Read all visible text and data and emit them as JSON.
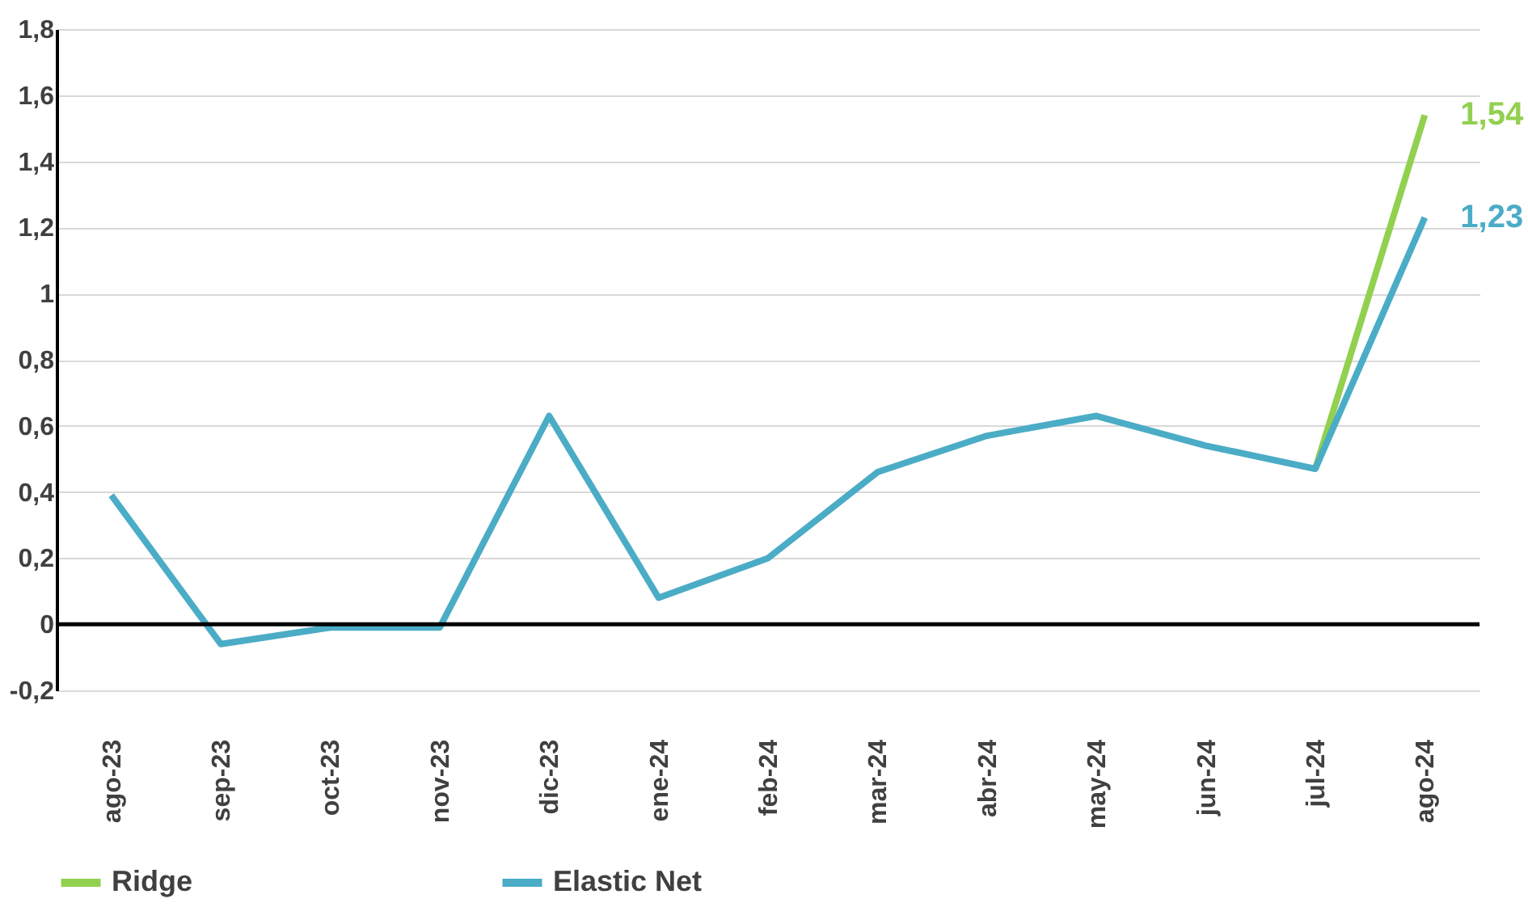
{
  "chart_data": {
    "type": "line",
    "categories": [
      "ago-23",
      "sep-23",
      "oct-23",
      "nov-23",
      "dic-23",
      "ene-24",
      "feb-24",
      "mar-24",
      "abr-24",
      "may-24",
      "jun-24",
      "jul-24",
      "ago-24"
    ],
    "series": [
      {
        "name": "Ridge",
        "color": "#92d050",
        "values": [
          null,
          null,
          null,
          null,
          null,
          null,
          null,
          null,
          null,
          null,
          null,
          0.47,
          1.54
        ],
        "value_labels": [
          null,
          null,
          null,
          null,
          null,
          null,
          null,
          null,
          null,
          null,
          null,
          null,
          "1,54"
        ]
      },
      {
        "name": "Elastic Net",
        "color": "#4bacc6",
        "values": [
          0.39,
          -0.06,
          -0.01,
          -0.01,
          0.63,
          0.08,
          0.2,
          0.46,
          0.57,
          0.63,
          0.54,
          0.47,
          1.23
        ],
        "value_labels": [
          null,
          null,
          null,
          null,
          null,
          null,
          null,
          null,
          null,
          null,
          null,
          null,
          "1,23"
        ]
      }
    ],
    "ylim": [
      -0.2,
      1.8
    ],
    "yticks": [
      {
        "value": -0.2,
        "label": "-0,2"
      },
      0,
      {
        "value": 0.2,
        "label": "0,2"
      },
      {
        "value": 0.4,
        "label": "0,4"
      },
      {
        "value": 0.6,
        "label": "0,6"
      },
      {
        "value": 0.8,
        "label": "0,8"
      },
      1,
      {
        "value": 1.2,
        "label": "1,2"
      },
      {
        "value": 1.4,
        "label": "1,4"
      },
      {
        "value": 1.6,
        "label": "1,6"
      },
      {
        "value": 1.8,
        "label": "1,8"
      }
    ],
    "ref_lines": [
      {
        "axis": "y",
        "value": 0,
        "color": "#000000"
      }
    ],
    "grid": "y",
    "legend": "bottom",
    "marker": "none",
    "line_style": "solid"
  }
}
